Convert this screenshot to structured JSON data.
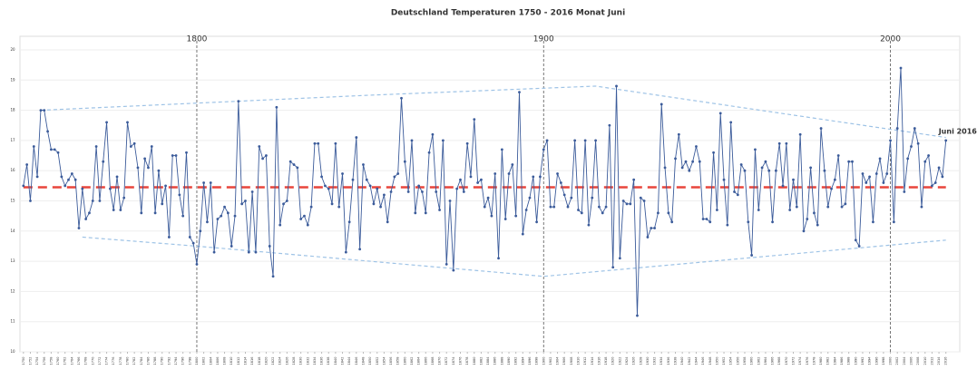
{
  "chart_data": {
    "type": "line",
    "title": "Deutschland Temperaturen 1750 - 2016  Monat Juni",
    "x": [
      1750,
      1751,
      1752,
      1753,
      1754,
      1755,
      1756,
      1757,
      1758,
      1759,
      1760,
      1761,
      1762,
      1763,
      1764,
      1765,
      1766,
      1767,
      1768,
      1769,
      1770,
      1771,
      1772,
      1773,
      1774,
      1775,
      1776,
      1777,
      1778,
      1779,
      1780,
      1781,
      1782,
      1783,
      1784,
      1785,
      1786,
      1787,
      1788,
      1789,
      1790,
      1791,
      1792,
      1793,
      1794,
      1795,
      1796,
      1797,
      1798,
      1799,
      1800,
      1801,
      1802,
      1803,
      1804,
      1805,
      1806,
      1807,
      1808,
      1809,
      1810,
      1811,
      1812,
      1813,
      1814,
      1815,
      1816,
      1817,
      1818,
      1819,
      1820,
      1821,
      1822,
      1823,
      1824,
      1825,
      1826,
      1827,
      1828,
      1829,
      1830,
      1831,
      1832,
      1833,
      1834,
      1835,
      1836,
      1837,
      1838,
      1839,
      1840,
      1841,
      1842,
      1843,
      1844,
      1845,
      1846,
      1847,
      1848,
      1849,
      1850,
      1851,
      1852,
      1853,
      1854,
      1855,
      1856,
      1857,
      1858,
      1859,
      1860,
      1861,
      1862,
      1863,
      1864,
      1865,
      1866,
      1867,
      1868,
      1869,
      1870,
      1871,
      1872,
      1873,
      1874,
      1875,
      1876,
      1877,
      1878,
      1879,
      1880,
      1881,
      1882,
      1883,
      1884,
      1885,
      1886,
      1887,
      1888,
      1889,
      1890,
      1891,
      1892,
      1893,
      1894,
      1895,
      1896,
      1897,
      1898,
      1899,
      1900,
      1901,
      1902,
      1903,
      1904,
      1905,
      1906,
      1907,
      1908,
      1909,
      1910,
      1911,
      1912,
      1913,
      1914,
      1915,
      1916,
      1917,
      1918,
      1919,
      1920,
      1921,
      1922,
      1923,
      1924,
      1925,
      1926,
      1927,
      1928,
      1929,
      1930,
      1931,
      1932,
      1933,
      1934,
      1935,
      1936,
      1937,
      1938,
      1939,
      1940,
      1941,
      1942,
      1943,
      1944,
      1945,
      1946,
      1947,
      1948,
      1949,
      1950,
      1951,
      1952,
      1953,
      1954,
      1955,
      1956,
      1957,
      1958,
      1959,
      1960,
      1961,
      1962,
      1963,
      1964,
      1965,
      1966,
      1967,
      1968,
      1969,
      1970,
      1971,
      1972,
      1973,
      1974,
      1975,
      1976,
      1977,
      1978,
      1979,
      1980,
      1981,
      1982,
      1983,
      1984,
      1985,
      1986,
      1987,
      1988,
      1989,
      1990,
      1991,
      1992,
      1993,
      1994,
      1995,
      1996,
      1997,
      1998,
      1999,
      2000,
      2001,
      2002,
      2003,
      2004,
      2005,
      2006,
      2007,
      2008,
      2009,
      2010,
      2011,
      2012,
      2013,
      2014,
      2015,
      2016
    ],
    "values": [
      15.5,
      16.2,
      15.0,
      16.8,
      15.8,
      18.0,
      18.0,
      17.3,
      16.7,
      16.7,
      16.6,
      15.8,
      15.5,
      15.7,
      15.9,
      15.7,
      14.1,
      15.4,
      14.4,
      14.6,
      15.0,
      16.8,
      15.0,
      16.3,
      17.6,
      15.4,
      14.7,
      15.8,
      14.7,
      15.1,
      17.6,
      16.8,
      16.9,
      16.1,
      14.6,
      16.4,
      16.1,
      16.8,
      14.6,
      16.0,
      14.9,
      15.5,
      13.8,
      16.5,
      16.5,
      15.2,
      14.5,
      16.6,
      13.8,
      13.6,
      12.9,
      14.0,
      15.6,
      14.3,
      15.6,
      13.3,
      14.4,
      14.5,
      14.8,
      14.6,
      13.5,
      14.5,
      18.3,
      14.9,
      15.0,
      13.3,
      15.3,
      13.3,
      16.8,
      16.4,
      16.5,
      13.5,
      12.5,
      18.1,
      14.2,
      14.9,
      15.0,
      16.3,
      16.2,
      16.1,
      14.4,
      14.5,
      14.2,
      14.8,
      16.9,
      16.9,
      15.8,
      15.5,
      15.4,
      14.9,
      16.9,
      14.8,
      15.9,
      13.3,
      14.3,
      15.7,
      17.1,
      13.4,
      16.2,
      15.7,
      15.5,
      14.9,
      15.4,
      14.8,
      15.2,
      14.3,
      15.3,
      15.8,
      15.9,
      18.4,
      16.3,
      15.3,
      17.0,
      14.6,
      15.5,
      15.3,
      14.6,
      16.6,
      17.2,
      15.3,
      14.7,
      17.0,
      12.9,
      15.0,
      12.7,
      15.4,
      15.7,
      15.3,
      16.9,
      15.8,
      17.7,
      15.6,
      15.7,
      14.8,
      15.1,
      14.5,
      15.9,
      13.1,
      16.7,
      14.4,
      15.9,
      16.2,
      14.5,
      18.6,
      13.9,
      14.7,
      15.1,
      15.8,
      14.3,
      15.8,
      16.7,
      17.0,
      14.8,
      14.8,
      15.9,
      15.6,
      15.2,
      14.8,
      15.1,
      17.0,
      14.7,
      14.6,
      17.0,
      14.2,
      15.1,
      17.0,
      14.8,
      14.6,
      14.8,
      17.5,
      12.8,
      18.8,
      13.1,
      15.0,
      14.9,
      14.9,
      15.7,
      11.2,
      15.1,
      15.0,
      13.8,
      14.1,
      14.1,
      14.6,
      18.2,
      16.1,
      14.6,
      14.3,
      16.4,
      17.2,
      16.1,
      16.3,
      16.0,
      16.3,
      16.8,
      16.3,
      14.4,
      14.4,
      14.3,
      16.6,
      14.7,
      17.9,
      15.7,
      14.2,
      17.6,
      15.3,
      15.2,
      16.2,
      16.0,
      14.3,
      13.2,
      16.7,
      14.7,
      16.1,
      16.3,
      16.0,
      14.3,
      16.0,
      16.9,
      15.5,
      16.9,
      14.7,
      15.7,
      14.8,
      17.2,
      14.0,
      14.4,
      16.1,
      14.6,
      14.2,
      17.4,
      16.0,
      14.8,
      15.4,
      15.7,
      16.5,
      14.8,
      14.9,
      16.3,
      16.3,
      13.7,
      13.5,
      15.9,
      15.6,
      15.8,
      14.3,
      15.9,
      16.4,
      15.6,
      15.9,
      17.0,
      14.3,
      17.4,
      19.4,
      15.3,
      16.4,
      16.8,
      17.4,
      16.9,
      14.8,
      16.3,
      16.5,
      15.5,
      15.6,
      16.1,
      15.8,
      17.0
    ],
    "color": "#3b5b9a",
    "xlim": [
      1749,
      2020
    ],
    "ylim": [
      10,
      20
    ],
    "yticks": [
      10,
      11,
      12,
      13,
      14,
      15,
      16,
      17,
      18,
      19,
      20
    ],
    "xticks": [
      1750,
      1752,
      1754,
      1756,
      1758,
      1760,
      1762,
      1764,
      1766,
      1768,
      1770,
      1772,
      1774,
      1776,
      1778,
      1780,
      1782,
      1784,
      1786,
      1788,
      1790,
      1792,
      1794,
      1796,
      1798,
      1800,
      1802,
      1804,
      1806,
      1808,
      1810,
      1812,
      1814,
      1816,
      1818,
      1820,
      1822,
      1824,
      1826,
      1828,
      1830,
      1832,
      1834,
      1836,
      1838,
      1840,
      1842,
      1844,
      1846,
      1848,
      1850,
      1852,
      1854,
      1856,
      1858,
      1860,
      1862,
      1864,
      1866,
      1868,
      1870,
      1872,
      1874,
      1876,
      1878,
      1880,
      1882,
      1884,
      1886,
      1888,
      1890,
      1892,
      1894,
      1896,
      1898,
      1900,
      1902,
      1904,
      1906,
      1908,
      1910,
      1912,
      1914,
      1916,
      1918,
      1920,
      1922,
      1924,
      1926,
      1928,
      1930,
      1932,
      1934,
      1936,
      1938,
      1940,
      1942,
      1944,
      1946,
      1948,
      1950,
      1952,
      1954,
      1956,
      1958,
      1960,
      1962,
      1964,
      1966,
      1968,
      1970,
      1972,
      1974,
      1976,
      1978,
      1980,
      1982,
      1984,
      1986,
      1988,
      1990,
      1992,
      1994,
      1996,
      1998,
      2000,
      2002,
      2004,
      2006,
      2008,
      2010,
      2012,
      2014,
      2016
    ],
    "grid": true,
    "markers": [
      1800,
      1900,
      2000
    ],
    "mean_line": {
      "value": 15.45,
      "x": [
        1750,
        2016
      ],
      "color": "#e8453c"
    },
    "envelopes": [
      {
        "x": [
          1755,
          1850,
          1915,
          2016
        ],
        "values": [
          18.0,
          18.5,
          18.8,
          17.1
        ],
        "color": "#9ec3e6"
      },
      {
        "x": [
          1767,
          1800,
          1900,
          2016
        ],
        "values": [
          13.8,
          13.5,
          12.5,
          13.7
        ],
        "color": "#9ec3e6"
      }
    ],
    "annotation": "Juni 2016"
  }
}
